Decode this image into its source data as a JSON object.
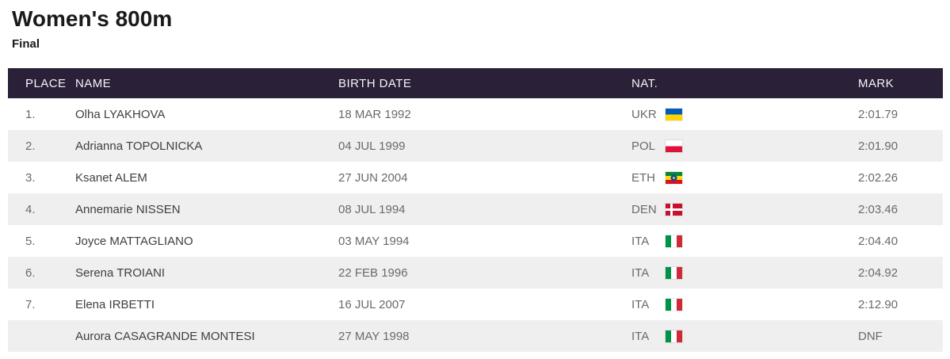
{
  "page": {
    "title": "Women's 800m",
    "subtitle": "Final"
  },
  "colors": {
    "header_bg": "#2a2139",
    "header_text": "#f6f3f9",
    "row_alt_bg": "#efefef",
    "row_bg": "#ffffff"
  },
  "results_table": {
    "columns": [
      {
        "key": "place",
        "label": "PLACE"
      },
      {
        "key": "name",
        "label": "NAME"
      },
      {
        "key": "birth_date",
        "label": "BIRTH DATE"
      },
      {
        "key": "nat",
        "label": "NAT."
      },
      {
        "key": "mark",
        "label": "MARK"
      }
    ],
    "rows": [
      {
        "place": "1.",
        "name": "Olha LYAKHOVA",
        "birth_date": "18 MAR 1992",
        "nat": "UKR",
        "flag_icon": "flag-ukr-icon",
        "mark": "2:01.79"
      },
      {
        "place": "2.",
        "name": "Adrianna TOPOLNICKA",
        "birth_date": "04 JUL 1999",
        "nat": "POL",
        "flag_icon": "flag-pol-icon",
        "mark": "2:01.90"
      },
      {
        "place": "3.",
        "name": "Ksanet ALEM",
        "birth_date": "27 JUN 2004",
        "nat": "ETH",
        "flag_icon": "flag-eth-icon",
        "mark": "2:02.26"
      },
      {
        "place": "4.",
        "name": "Annemarie NISSEN",
        "birth_date": "08 JUL 1994",
        "nat": "DEN",
        "flag_icon": "flag-den-icon",
        "mark": "2:03.46"
      },
      {
        "place": "5.",
        "name": "Joyce MATTAGLIANO",
        "birth_date": "03 MAY 1994",
        "nat": "ITA",
        "flag_icon": "flag-ita-icon",
        "mark": "2:04.40"
      },
      {
        "place": "6.",
        "name": "Serena TROIANI",
        "birth_date": "22 FEB 1996",
        "nat": "ITA",
        "flag_icon": "flag-ita-icon",
        "mark": "2:04.92"
      },
      {
        "place": "7.",
        "name": "Elena IRBETTI",
        "birth_date": "16 JUL 2007",
        "nat": "ITA",
        "flag_icon": "flag-ita-icon",
        "mark": "2:12.90"
      },
      {
        "place": "",
        "name": "Aurora CASAGRANDE MONTESI",
        "birth_date": "27 MAY 1998",
        "nat": "ITA",
        "flag_icon": "flag-ita-icon",
        "mark": "DNF"
      }
    ],
    "flags": {
      "UKR": {
        "type": "h",
        "stripes": [
          "#005BBB",
          "#FFD500"
        ]
      },
      "POL": {
        "type": "h",
        "stripes": [
          "#FFFFFF",
          "#DC143C"
        ]
      },
      "ETH": {
        "type": "h",
        "stripes": [
          "#078930",
          "#FCDD09",
          "#DA121A"
        ],
        "emblem": "#0F47AF",
        "emblem_star": "#FCDD09"
      },
      "DEN": {
        "type": "nordic",
        "field": "#C8102E",
        "cross": "#FFFFFF"
      },
      "ITA": {
        "type": "v",
        "stripes": [
          "#009246",
          "#FFFFFF",
          "#CE2B37"
        ]
      }
    }
  }
}
